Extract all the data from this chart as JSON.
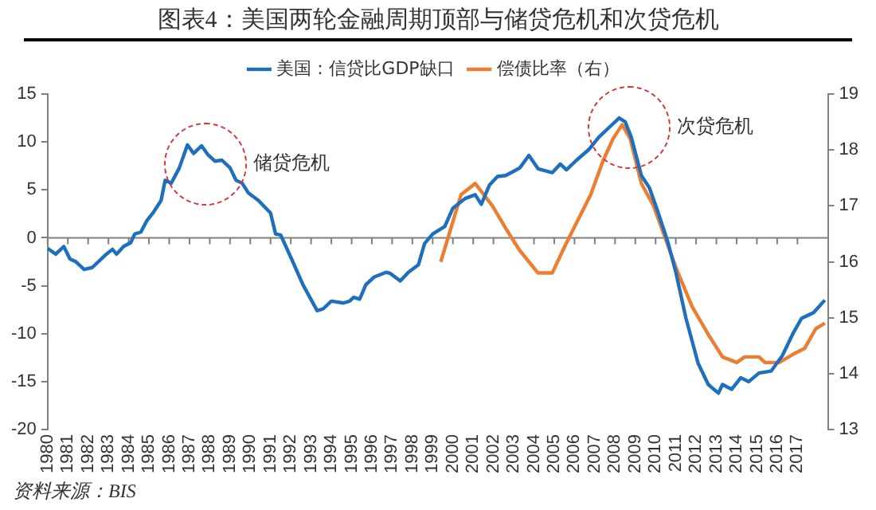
{
  "chart_data": {
    "type": "line",
    "title": "图表4：美国两轮金融周期顶部与储贷危机和次贷危机",
    "xlim": [
      1980,
      2018.5
    ],
    "xticks": [
      1980,
      1981,
      1982,
      1983,
      1984,
      1985,
      1986,
      1987,
      1988,
      1989,
      1990,
      1991,
      1992,
      1993,
      1994,
      1995,
      1996,
      1997,
      1998,
      1999,
      2000,
      2001,
      2002,
      2003,
      2004,
      2005,
      2006,
      2007,
      2008,
      2009,
      2010,
      2011,
      2012,
      2013,
      2014,
      2015,
      2016,
      2017
    ],
    "ylim": [
      -20,
      15
    ],
    "yticks": [
      -20,
      -15,
      -10,
      -5,
      0,
      5,
      10,
      15
    ],
    "y2lim": [
      13,
      19
    ],
    "y2ticks": [
      13,
      14,
      15,
      16,
      17,
      18,
      19
    ],
    "legend": "top",
    "grid": false,
    "marker": "none",
    "series": [
      {
        "name": "美国：信贷比GDP缺口",
        "color": "#1f6fbf",
        "x": [
          1980,
          1980.4,
          1980.8,
          1981.1,
          1981.4,
          1981.8,
          1982.2,
          1982.9,
          1983.2,
          1983.4,
          1983.75,
          1984.1,
          1984.3,
          1984.6,
          1984.9,
          1985.2,
          1985.6,
          1985.8,
          1986.1,
          1986.5,
          1986.9,
          1987.2,
          1987.6,
          1987.9,
          1988.25,
          1988.6,
          1989,
          1989.3,
          1989.6,
          1989.9,
          1990.4,
          1991,
          1991.25,
          1991.5,
          1992.1,
          1992.6,
          1993.3,
          1993.6,
          1994,
          1994.6,
          1994.9,
          1995.1,
          1995.4,
          1995.7,
          1996.1,
          1996.7,
          1996.9,
          1997.4,
          1997.8,
          1998.3,
          1998.6,
          1999,
          1999.6,
          2000,
          2000.6,
          2001.1,
          2001.4,
          2001.8,
          2002.2,
          2002.6,
          2003.05,
          2003.3,
          2003.75,
          2004.2,
          2004.9,
          2005.3,
          2005.6,
          2006.1,
          2006.7,
          2007.2,
          2007.6,
          2008.2,
          2008.5,
          2008.8,
          2009.3,
          2009.7,
          2010.1,
          2010.6,
          2011,
          2011.5,
          2012.1,
          2012.6,
          2013.1,
          2013.3,
          2013.75,
          2014.2,
          2014.6,
          2015.1,
          2015.7,
          2016.25,
          2016.8,
          2017.2,
          2017.8,
          2018.35
        ],
        "values": [
          -1.1,
          -1.7,
          -0.9,
          -2.2,
          -2.5,
          -3.3,
          -3.1,
          -1.7,
          -1.2,
          -1.7,
          -0.9,
          -0.5,
          0.4,
          0.6,
          1.8,
          2.6,
          3.9,
          6,
          5.7,
          7.3,
          9.7,
          8.8,
          9.6,
          8.7,
          8,
          8.1,
          7.3,
          6,
          5.7,
          4.7,
          3.9,
          2.6,
          0.4,
          0.3,
          -2.5,
          -4.9,
          -7.6,
          -7.4,
          -6.6,
          -6.8,
          -6.6,
          -6.2,
          -6.4,
          -4.9,
          -4.1,
          -3.6,
          -3.7,
          -4.5,
          -3.6,
          -2.8,
          -0.6,
          0.4,
          1.2,
          3.1,
          4.1,
          4.5,
          3.5,
          5.5,
          6.4,
          6.5,
          7,
          7.3,
          8.6,
          7.2,
          6.8,
          7.7,
          7.1,
          8.1,
          9.2,
          10.5,
          11.3,
          12.5,
          12.1,
          10.5,
          6.5,
          5.2,
          2.8,
          -0.4,
          -3.6,
          -8.4,
          -13.1,
          -15.3,
          -16.2,
          -15.3,
          -15.8,
          -14.6,
          -15,
          -14.1,
          -13.9,
          -12.3,
          -9.9,
          -8.4,
          -7.8,
          -6.5
        ]
      },
      {
        "name": "偿债比率（右）",
        "color": "#ed7d31",
        "axis": "y2",
        "x": [
          1999.4,
          1999.9,
          2000.4,
          2001.1,
          2001.95,
          2002.6,
          2003.3,
          2004.2,
          2004.9,
          2005.55,
          2006.1,
          2006.8,
          2007.4,
          2007.9,
          2008.35,
          2008.75,
          2009.3,
          2009.9,
          2010.4,
          2011,
          2011.8,
          2012.6,
          2013.3,
          2014,
          2014.4,
          2015.1,
          2015.4,
          2016.1,
          2016.8,
          2017.35,
          2017.9,
          2018.35
        ],
        "values": [
          16,
          16.6,
          17.2,
          17.4,
          17,
          16.6,
          16.2,
          15.8,
          15.8,
          16.3,
          16.7,
          17.2,
          17.8,
          18.2,
          18.45,
          18.2,
          17.4,
          17,
          16.5,
          15.9,
          15.2,
          14.7,
          14.3,
          14.2,
          14.3,
          14.3,
          14.2,
          14.2,
          14.35,
          14.45,
          14.8,
          14.9
        ]
      }
    ],
    "ref_lines": [
      {
        "axis": "y",
        "value": 0,
        "color": "#808080"
      }
    ],
    "annotations": [
      {
        "text": "储贷危机",
        "x": 1987.7,
        "y": 7.9
      },
      {
        "text": "次贷危机",
        "x": 2008.6,
        "y": 11.6
      },
      "资料来源：BIS"
    ]
  }
}
